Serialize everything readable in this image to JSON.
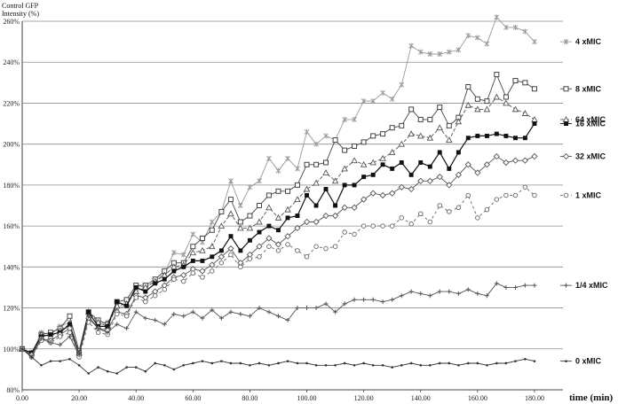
{
  "chart_data": {
    "type": "line",
    "ylabel_line1": "Control GFP",
    "ylabel_line2": "Intensity (%)",
    "xlabel": "time (min)",
    "xlim": [
      0,
      190
    ],
    "ylim": [
      80,
      260
    ],
    "xticks": [
      0,
      20,
      40,
      60,
      80,
      100,
      120,
      140,
      160,
      180
    ],
    "xtick_labels": [
      "0.00",
      "20.00",
      "40.00",
      "60.00",
      "80.00",
      "100.00",
      "120.00",
      "140.00",
      "160.00",
      "180.00"
    ],
    "yticks": [
      80,
      100,
      120,
      140,
      160,
      180,
      200,
      220,
      240,
      260
    ],
    "ytick_labels": [
      "80%",
      "100%",
      "120%",
      "140%",
      "160%",
      "180%",
      "200%",
      "220%",
      "240%",
      "260%"
    ],
    "grid": "horizontal",
    "x": [
      0,
      3.3,
      6.7,
      10,
      13.3,
      16.7,
      20,
      23.3,
      26.7,
      30,
      33.3,
      36.7,
      40,
      43.3,
      46.7,
      50,
      53.3,
      56.7,
      60,
      63.3,
      66.7,
      70,
      73.3,
      76.7,
      80,
      83.3,
      86.7,
      90,
      93.3,
      96.7,
      100,
      103.3,
      106.7,
      110,
      113.3,
      116.7,
      120,
      123.3,
      126.7,
      130,
      133.3,
      136.7,
      140,
      143.3,
      146.7,
      150,
      153.3,
      156.7,
      160,
      163.3,
      166.7,
      170,
      173.3,
      176.7,
      180
    ],
    "series": [
      {
        "name": "4 xMIC",
        "color": "#9a9a9a",
        "marker": "asterisk",
        "dash": "",
        "values": [
          100,
          97,
          108,
          107,
          111,
          113,
          97,
          117,
          112,
          113,
          120,
          121,
          131,
          130,
          133,
          137,
          147,
          146,
          156,
          152,
          162,
          167,
          182,
          170,
          179,
          182,
          193,
          187,
          193,
          188,
          206,
          200,
          204,
          202,
          212,
          212,
          221,
          221,
          225,
          222,
          229,
          248,
          245,
          244,
          244,
          245,
          246,
          253,
          252,
          249,
          262,
          257,
          257,
          255,
          250
        ]
      },
      {
        "name": "8 xMIC",
        "color": "#444444",
        "marker": "square-open",
        "dash": "",
        "values": [
          100,
          98,
          107,
          108,
          110,
          116,
          99,
          118,
          114,
          112,
          123,
          124,
          131,
          131,
          134,
          138,
          142,
          142,
          150,
          154,
          158,
          167,
          173,
          162,
          165,
          170,
          175,
          177,
          177,
          180,
          190,
          190,
          191,
          202,
          197,
          199,
          201,
          204,
          205,
          208,
          209,
          217,
          212,
          212,
          218,
          209,
          213,
          228,
          222,
          221,
          234,
          223,
          231,
          230,
          227
        ]
      },
      {
        "name": "64 xMIC",
        "color": "#555555",
        "marker": "triangle-open",
        "dash": "4,2",
        "values": [
          100,
          98,
          107,
          106,
          109,
          112,
          98,
          118,
          113,
          111,
          121,
          122,
          128,
          130,
          133,
          136,
          140,
          141,
          147,
          148,
          150,
          160,
          166,
          159,
          159,
          162,
          169,
          164,
          168,
          173,
          178,
          181,
          186,
          182,
          188,
          192,
          190,
          191,
          193,
          196,
          200,
          205,
          204,
          203,
          208,
          202,
          211,
          219,
          217,
          217,
          223,
          220,
          217,
          215,
          212
        ]
      },
      {
        "name": "16 xMIC",
        "color": "#111111",
        "marker": "square-filled",
        "dash": "",
        "values": [
          100,
          98,
          106,
          107,
          108,
          112,
          97,
          118,
          111,
          111,
          123,
          121,
          130,
          128,
          132,
          134,
          138,
          140,
          143,
          143,
          145,
          148,
          155,
          148,
          153,
          157,
          160,
          158,
          164,
          165,
          175,
          170,
          178,
          170,
          180,
          180,
          184,
          185,
          190,
          188,
          191,
          185,
          191,
          189,
          196,
          188,
          196,
          203,
          204,
          204,
          205,
          204,
          203,
          203,
          210
        ]
      },
      {
        "name": "32 xMIC",
        "color": "#555555",
        "marker": "diamond-open",
        "dash": "",
        "values": [
          100,
          97,
          105,
          104,
          107,
          110,
          97,
          115,
          110,
          109,
          118,
          117,
          126,
          125,
          128,
          131,
          135,
          136,
          139,
          138,
          141,
          145,
          149,
          142,
          146,
          150,
          154,
          151,
          155,
          159,
          162,
          162,
          165,
          165,
          169,
          169,
          173,
          176,
          175,
          176,
          179,
          178,
          182,
          182,
          184,
          180,
          185,
          190,
          186,
          190,
          194,
          191,
          192,
          192,
          194
        ]
      },
      {
        "name": "1 xMIC",
        "color": "#666666",
        "marker": "circle-open",
        "dash": "3,3",
        "values": [
          100,
          96,
          104,
          103,
          106,
          108,
          96,
          113,
          108,
          107,
          117,
          116,
          125,
          123,
          126,
          129,
          134,
          133,
          137,
          135,
          138,
          142,
          146,
          140,
          144,
          145,
          150,
          148,
          151,
          148,
          145,
          150,
          149,
          150,
          157,
          156,
          160,
          160,
          160,
          160,
          164,
          161,
          166,
          162,
          170,
          167,
          169,
          175,
          164,
          168,
          173,
          175,
          175,
          179,
          175
        ]
      },
      {
        "name": "1/4 xMIC",
        "color": "#555555",
        "marker": "plus",
        "dash": "",
        "values": [
          100,
          96,
          105,
          103,
          102,
          106,
          97,
          116,
          110,
          108,
          112,
          110,
          118,
          115,
          114,
          112,
          117,
          116,
          118,
          115,
          119,
          115,
          118,
          117,
          116,
          120,
          118,
          116,
          114,
          120,
          120,
          120,
          122,
          118,
          122,
          124,
          124,
          124,
          123,
          124,
          126,
          128,
          127,
          126,
          128,
          128,
          127,
          129,
          127,
          126,
          132,
          130,
          130,
          131,
          131
        ]
      },
      {
        "name": "0 xMIC",
        "color": "#333333",
        "marker": "dot",
        "dash": "",
        "values": [
          100,
          96,
          92,
          94,
          94,
          95,
          92,
          88,
          91,
          89,
          88,
          91,
          91,
          89,
          93,
          92,
          90,
          92,
          93,
          94,
          93,
          94,
          93,
          93,
          92,
          93,
          92,
          93,
          94,
          93,
          93,
          92,
          92,
          92,
          93,
          92,
          93,
          92,
          92,
          91,
          92,
          93,
          92,
          92,
          93,
          93,
          92,
          93,
          93,
          92,
          93,
          93,
          94,
          95,
          94
        ]
      }
    ]
  }
}
